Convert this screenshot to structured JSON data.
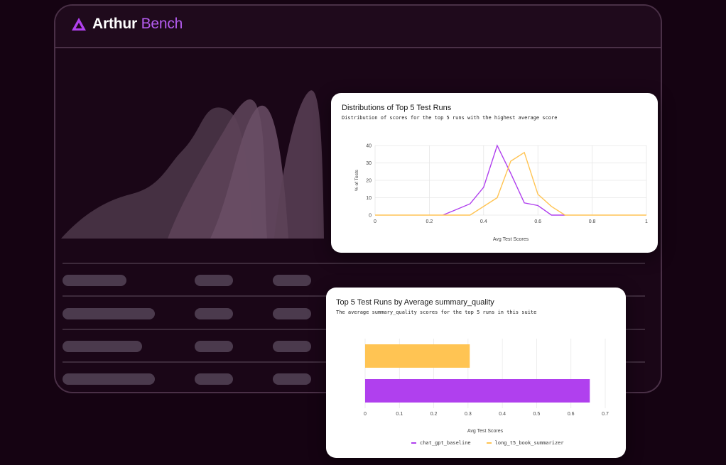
{
  "app": {
    "name_part1": "Arthur",
    "name_part2": "Bench"
  },
  "icons": {
    "logo": "arthur-triangle-logo-icon"
  },
  "colors": {
    "background": "#150312",
    "accent_purple": "#b040ee",
    "accent_orange": "#ffc453",
    "placeholder": "#4b3a4d"
  },
  "distribution_card": {
    "title": "Distributions of Top 5 Test Runs",
    "subtitle": "Distribution of scores for the top 5 runs with the highest average score"
  },
  "bar_card": {
    "title": "Top 5 Test Runs by Average summary_quality",
    "subtitle": "The average summary_quality scores for the top 5 runs in this suite"
  },
  "chart_data": [
    {
      "type": "line",
      "xlabel": "Avg Test Scores",
      "ylabel": "% of Tests",
      "xlim": [
        0,
        1
      ],
      "ylim": [
        0,
        40
      ],
      "x_ticks": [
        "0",
        "0.2",
        "0.4",
        "0.6",
        "0.8",
        "1"
      ],
      "y_ticks": [
        "0",
        "10",
        "20",
        "30",
        "40"
      ],
      "grid": true,
      "series": [
        {
          "color": "#b040ee",
          "points": [
            [
              0.25,
              0
            ],
            [
              0.35,
              6.5
            ],
            [
              0.4,
              16
            ],
            [
              0.45,
              40
            ],
            [
              0.5,
              24
            ],
            [
              0.55,
              7
            ],
            [
              0.6,
              5.5
            ],
            [
              0.65,
              0
            ],
            [
              0.7,
              0
            ]
          ]
        },
        {
          "color": "#ffc453",
          "points": [
            [
              0,
              0
            ],
            [
              0.35,
              0
            ],
            [
              0.45,
              10
            ],
            [
              0.5,
              31
            ],
            [
              0.55,
              36
            ],
            [
              0.6,
              12
            ],
            [
              0.65,
              5
            ],
            [
              0.7,
              0
            ],
            [
              1,
              0
            ]
          ]
        }
      ]
    },
    {
      "type": "bar",
      "orientation": "horizontal",
      "xlabel": "Avg Test Scores",
      "xlim": [
        0,
        0.7
      ],
      "x_ticks": [
        "0",
        "0.1",
        "0.2",
        "0.3",
        "0.4",
        "0.5",
        "0.6",
        "0.7"
      ],
      "grid": true,
      "legend": "bottom",
      "categories": [
        "long_t5_book_summarizer",
        "chat_gpt_baseline"
      ],
      "values": [
        0.305,
        0.655
      ],
      "colors": [
        "#ffc453",
        "#b040ee"
      ],
      "legend_entries": [
        {
          "label": "chat_gpt_baseline",
          "color": "#b040ee"
        },
        {
          "label": "long_t5_book_summarizer",
          "color": "#ffc453"
        }
      ]
    }
  ]
}
